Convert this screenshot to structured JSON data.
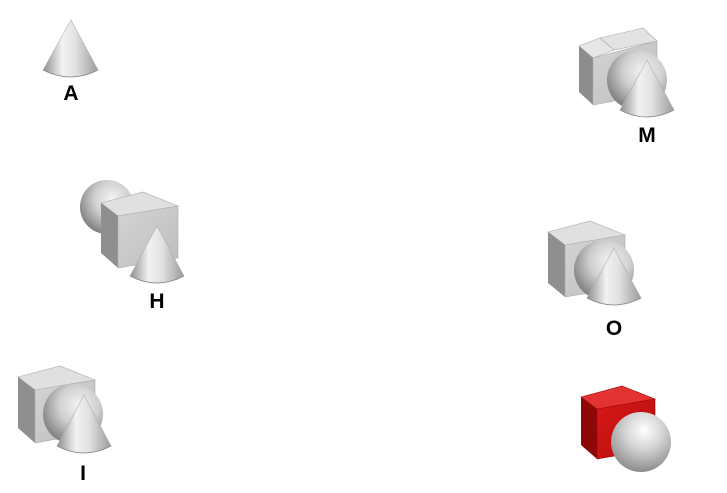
{
  "groups": [
    {
      "id": "A",
      "label": "A",
      "objects": [
        "cone"
      ]
    },
    {
      "id": "M",
      "label": "M",
      "objects": [
        "cube",
        "sphere",
        "cone"
      ]
    },
    {
      "id": "H",
      "label": "H",
      "objects": [
        "sphere",
        "cube",
        "cone"
      ]
    },
    {
      "id": "O",
      "label": "O",
      "objects": [
        "cube",
        "sphere",
        "cone"
      ]
    },
    {
      "id": "I",
      "label": "I",
      "objects": [
        "cube",
        "sphere",
        "cone"
      ]
    },
    {
      "id": "unlabeled",
      "label": "",
      "objects": [
        "cube",
        "sphere"
      ],
      "cube_color": "#cc1111"
    }
  ],
  "colors": {
    "gray_object": "#c8c8c8",
    "red_cube": "#cc1111",
    "background": "#ffffff"
  }
}
